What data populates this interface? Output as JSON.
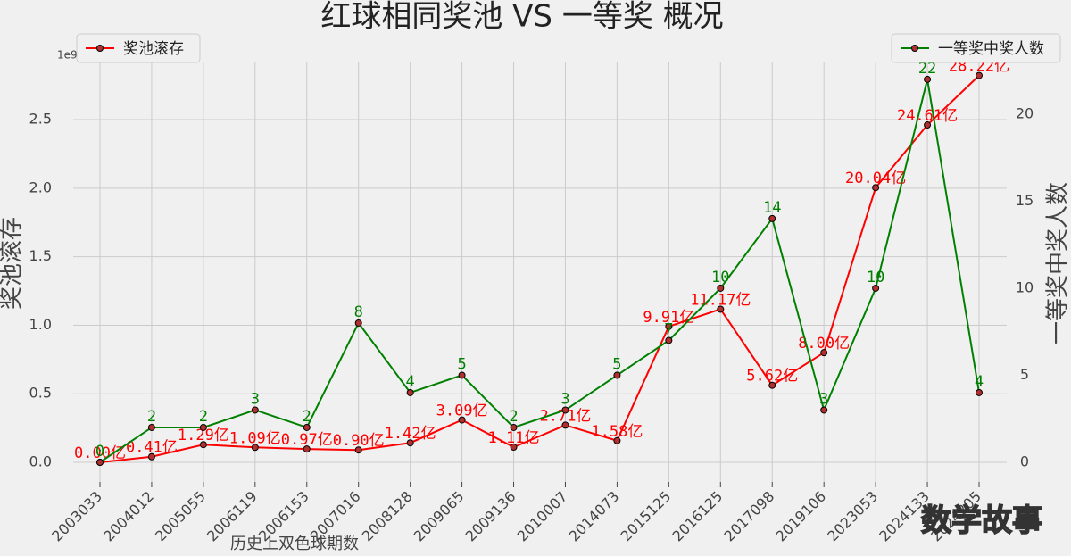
{
  "chart_data": {
    "type": "line",
    "title": "红球相同奖池 VS 一等奖 概况",
    "x_label": "历史上双色球期数",
    "y_label": "奖池滚存",
    "y2_label": "一等奖中奖人数",
    "y_offset_label": "1e9",
    "watermark": "数学故事",
    "categories": [
      "2003033",
      "2004012",
      "2005055",
      "2006119",
      "2006153",
      "2007016",
      "2008128",
      "2009065",
      "2009136",
      "2010007",
      "2014073",
      "2015125",
      "2016125",
      "2017098",
      "2019106",
      "2023053",
      "2024133",
      "2024205"
    ],
    "series": [
      {
        "name": "奖池滚存",
        "color": "#ff0000",
        "legend": "upper left",
        "values": [
          0,
          41000000,
          129000000,
          109000000,
          97000000,
          90000000,
          142000000,
          309000000,
          111000000,
          271000000,
          158000000,
          991000000,
          1117000000,
          562000000,
          800000000,
          2004000000,
          2461000000,
          2822000000
        ],
        "value_labels": [
          "0.00亿",
          "0.41亿",
          "1.29亿",
          "1.09亿",
          "0.97亿",
          "0.90亿",
          "1.42亿",
          "3.09亿",
          "1.11亿",
          "2.71亿",
          "1.58亿",
          "9.91亿",
          "11.17亿",
          "5.62亿",
          "8.00亿",
          "20.04亿",
          "24.61亿",
          "28.22亿"
        ]
      },
      {
        "name": "一等奖中奖人数",
        "color": "#008000",
        "axis": "y2",
        "legend": "upper right",
        "values": [
          0,
          2,
          2,
          3,
          2,
          8,
          4,
          5,
          2,
          3,
          5,
          7,
          10,
          14,
          3,
          10,
          22,
          4
        ]
      }
    ],
    "ylim": [
      -143000000,
      2917000000
    ],
    "yticks": [
      {
        "value": 0,
        "label": "0.0"
      },
      {
        "value": 500000000,
        "label": "0.5"
      },
      {
        "value": 1000000000,
        "label": "1.0"
      },
      {
        "value": 1500000000,
        "label": "1.5"
      },
      {
        "value": 2000000000,
        "label": "2.0"
      },
      {
        "value": 2500000000,
        "label": "2.5"
      }
    ],
    "y2lim": [
      -1.13,
      22.97
    ],
    "y2ticks": [
      0,
      5,
      10,
      15,
      20
    ],
    "grid": true
  }
}
